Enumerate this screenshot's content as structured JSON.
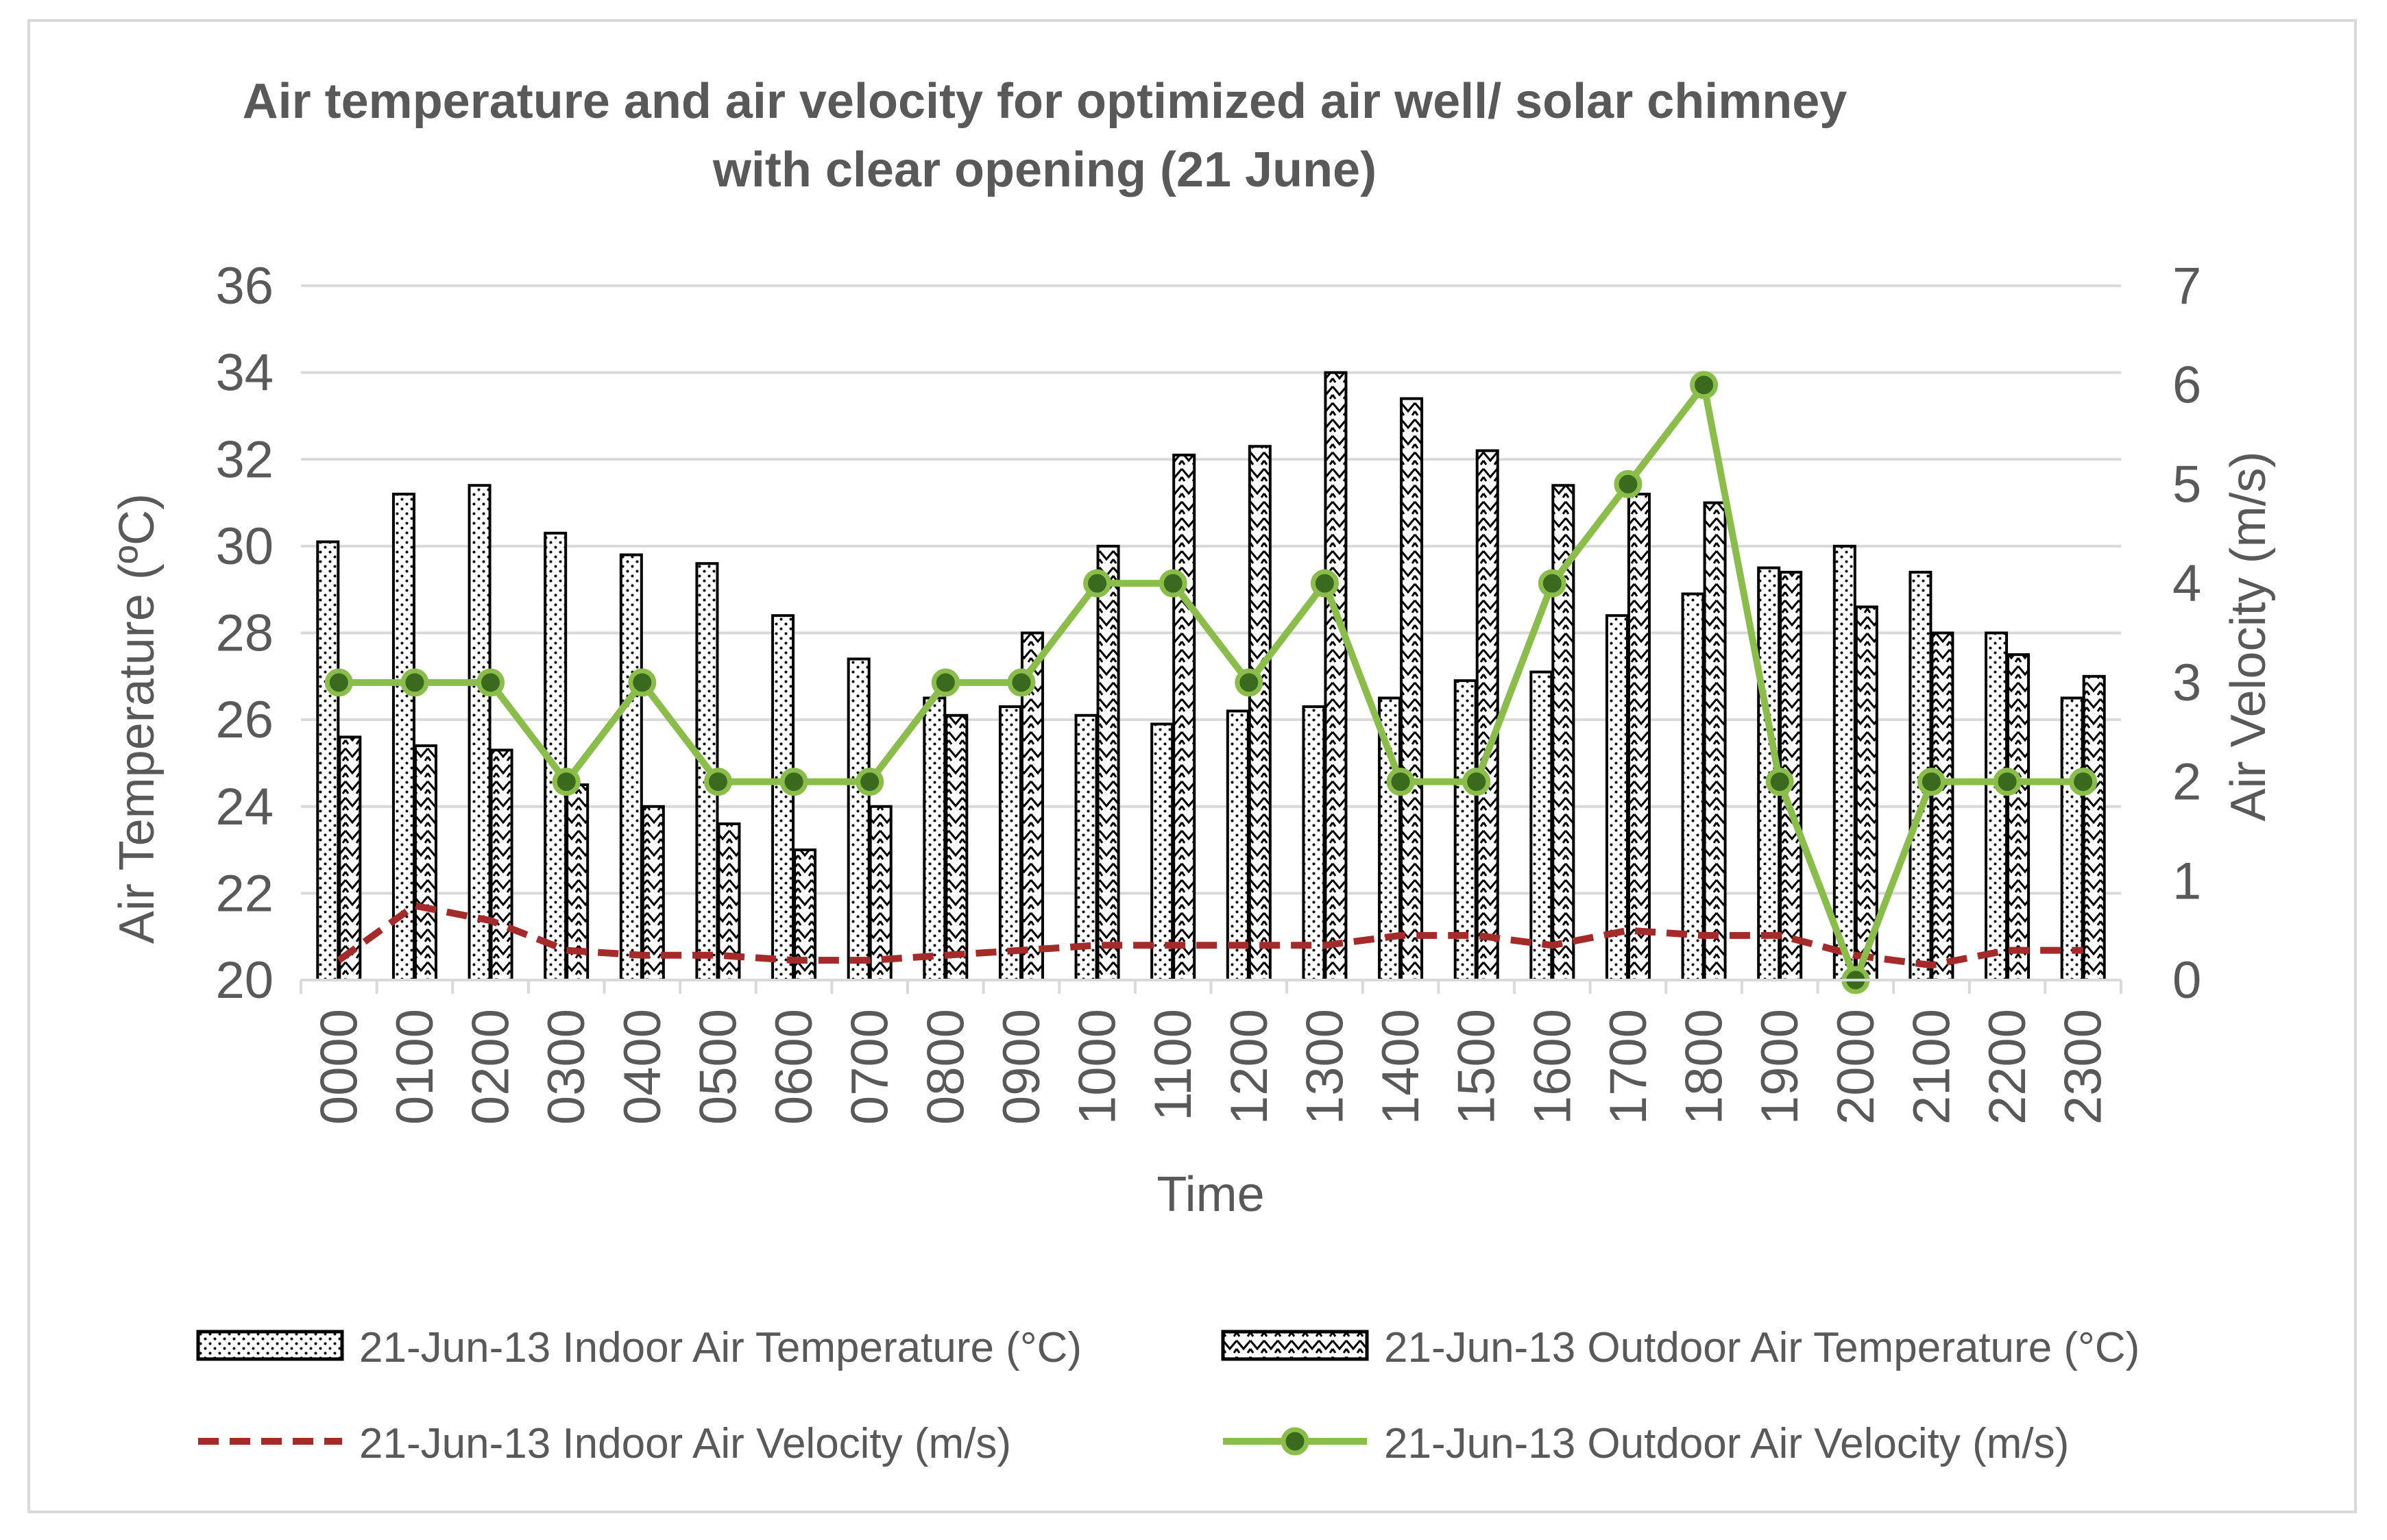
{
  "chart_data": {
    "type": "bar",
    "title_lines": [
      "Air temperature and air velocity for optimized air well/ solar chimney",
      "with clear opening (21 June)"
    ],
    "xlabel": "Time",
    "ylabel_left": "Air Temperature (ºC)",
    "ylabel_right": "Air Velocity (m/s)",
    "categories": [
      "0000",
      "0100",
      "0200",
      "0300",
      "0400",
      "0500",
      "0600",
      "0700",
      "0800",
      "0900",
      "1000",
      "1100",
      "1200",
      "1300",
      "1400",
      "1500",
      "1600",
      "1700",
      "1800",
      "1900",
      "2000",
      "2100",
      "2200",
      "2300"
    ],
    "y_left": {
      "min": 20,
      "max": 36,
      "ticks": [
        "20",
        "22",
        "24",
        "26",
        "28",
        "30",
        "32",
        "34",
        "36"
      ]
    },
    "y_right": {
      "min": 0,
      "max": 7,
      "ticks": [
        "0",
        "1",
        "2",
        "3",
        "4",
        "5",
        "6",
        "7"
      ]
    },
    "series": [
      {
        "name": "21-Jun-13 Indoor Air Temperature (°C)",
        "kind": "bar",
        "axis": "left",
        "pattern": "dots",
        "values": [
          30.1,
          31.2,
          31.4,
          30.3,
          29.8,
          29.6,
          28.4,
          27.4,
          26.5,
          26.3,
          26.1,
          25.9,
          26.2,
          26.3,
          26.5,
          26.9,
          27.1,
          28.4,
          28.9,
          29.5,
          30.0,
          29.4,
          28.0,
          26.5
        ]
      },
      {
        "name": "21-Jun-13 Outdoor Air Temperature (°C)",
        "kind": "bar",
        "axis": "left",
        "pattern": "zigzag",
        "values": [
          25.6,
          25.4,
          25.3,
          24.5,
          24.0,
          23.6,
          23.0,
          24.0,
          26.1,
          28.0,
          30.0,
          32.1,
          32.3,
          34.0,
          33.4,
          32.2,
          31.4,
          31.2,
          31.0,
          29.4,
          28.6,
          28.0,
          27.5,
          27.0
        ]
      },
      {
        "name": "21-Jun-13 Indoor Air Velocity (m/s)",
        "kind": "line",
        "axis": "right",
        "style": "dashed",
        "color": "#a52a2a",
        "values": [
          0.2,
          0.75,
          0.6,
          0.3,
          0.25,
          0.25,
          0.2,
          0.2,
          0.25,
          0.3,
          0.35,
          0.35,
          0.35,
          0.35,
          0.45,
          0.45,
          0.35,
          0.5,
          0.45,
          0.45,
          0.25,
          0.15,
          0.3,
          0.3
        ]
      },
      {
        "name": "21-Jun-13 Outdoor Air Velocity (m/s)",
        "kind": "line",
        "axis": "right",
        "style": "solid-marker",
        "color": "#8bbd4a",
        "marker_color": "#3b6a1e",
        "values": [
          3,
          3,
          3,
          2,
          3,
          2,
          2,
          2,
          3,
          3,
          4,
          4,
          3,
          4,
          2,
          2,
          4,
          5,
          6,
          2,
          0,
          2,
          2,
          2
        ]
      }
    ],
    "legend_position": "bottom",
    "grid": true
  }
}
